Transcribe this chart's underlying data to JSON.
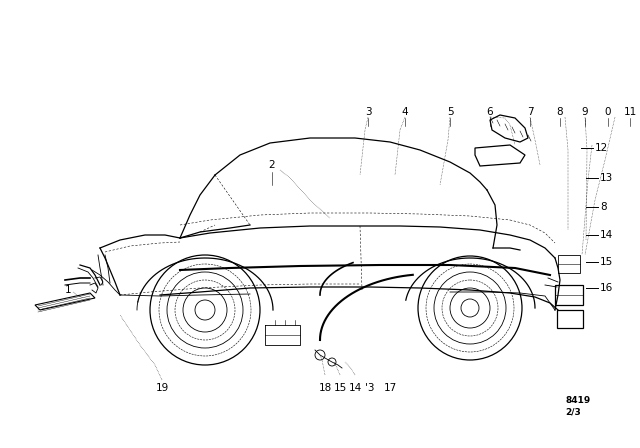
{
  "background_color": "#ffffff",
  "fig_width": 6.4,
  "fig_height": 4.48,
  "dpi": 100,
  "bottom_right_text_line1": "8419",
  "bottom_right_text_line2": "2/3",
  "lw_body": 0.9,
  "lw_detail": 0.6,
  "lw_thin": 0.4,
  "label_fontsize": 7.5
}
